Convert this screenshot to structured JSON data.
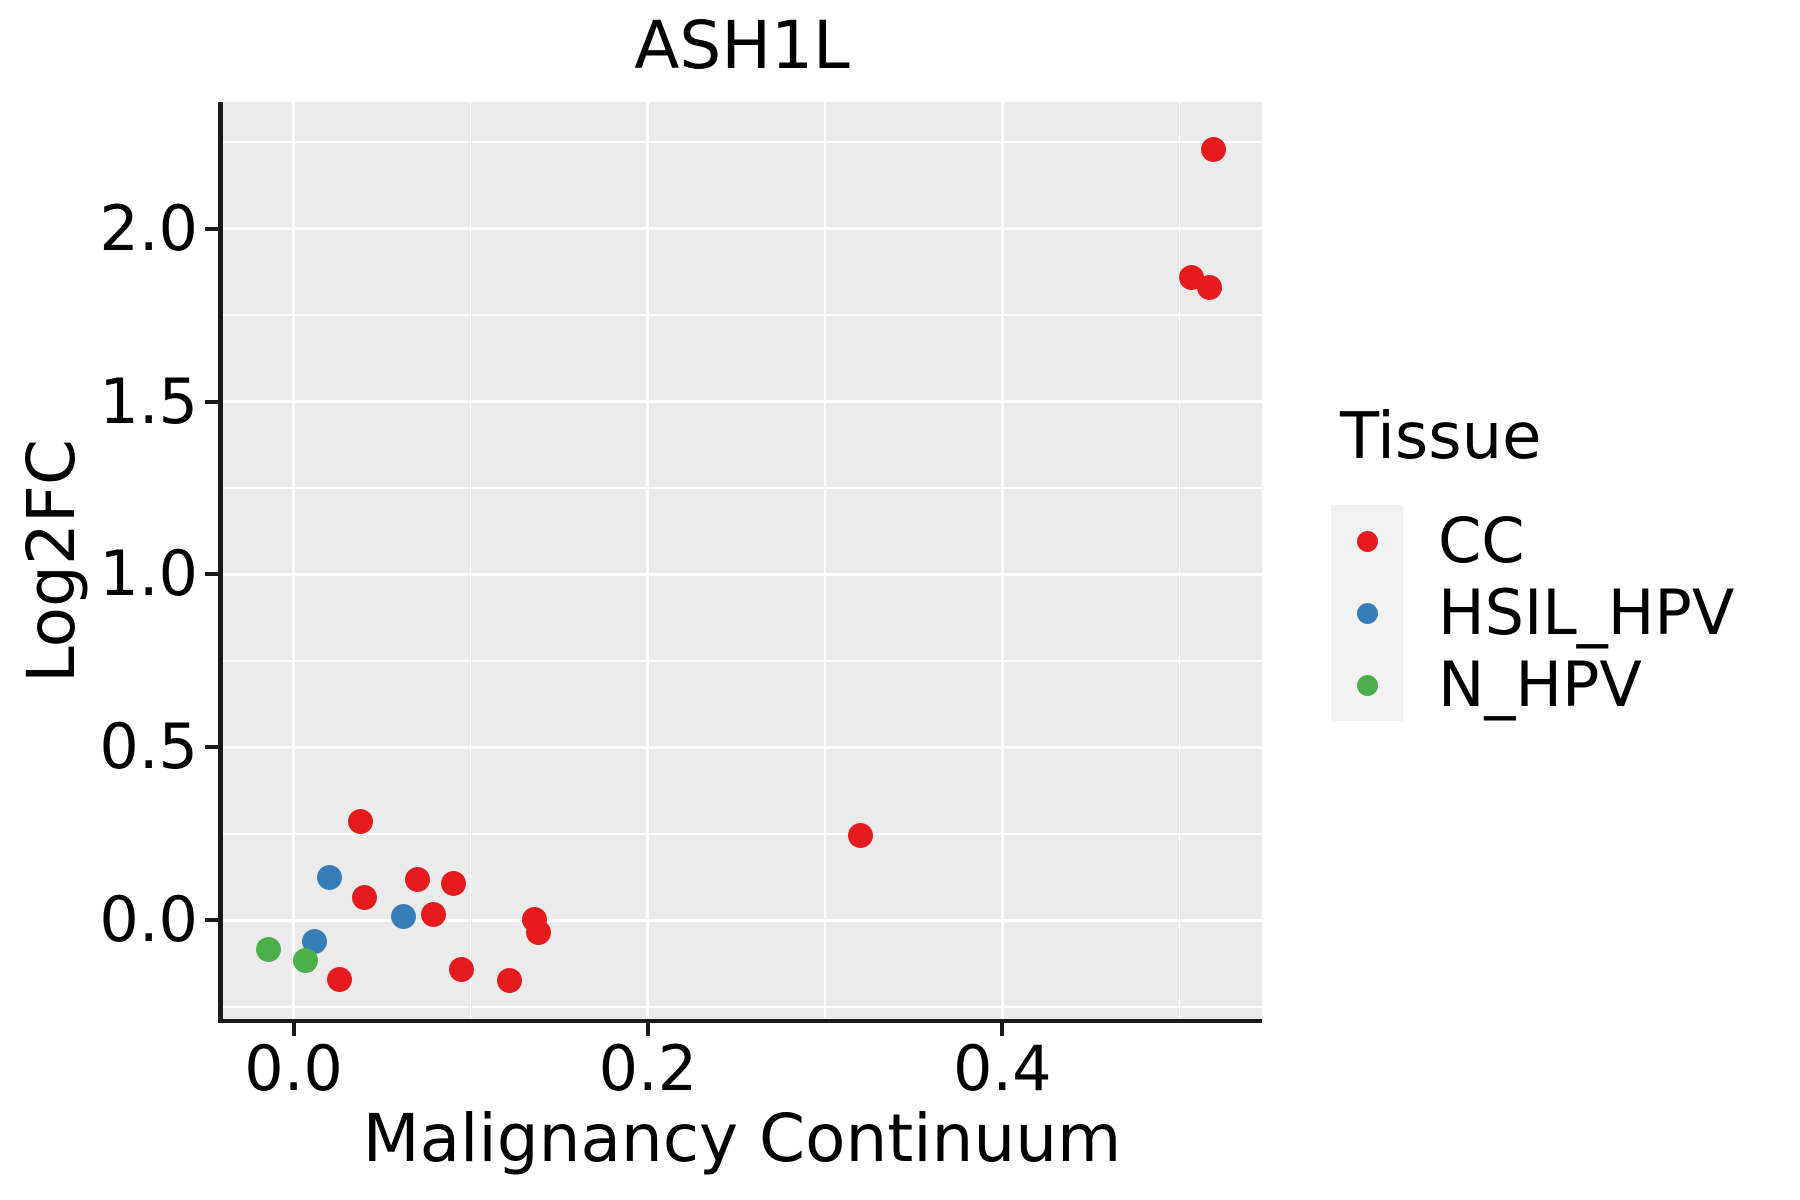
{
  "chart_data": {
    "type": "scatter",
    "title": "ASH1L",
    "xlabel": "Malignancy Continuum",
    "ylabel": "Log2FC",
    "panel_bg": "#EBEBEB",
    "grid_color": "#FFFFFF",
    "xlim": [
      -0.0404,
      0.5466
    ],
    "ylim": [
      -0.288,
      2.366
    ],
    "x_major_ticks": [
      0.0,
      0.2,
      0.4
    ],
    "x_tick_labels": [
      "0.0",
      "0.2",
      "0.4"
    ],
    "x_minor_ticks": [
      0.1,
      0.3,
      0.5
    ],
    "y_major_ticks": [
      0.0,
      0.5,
      1.0,
      1.5,
      2.0
    ],
    "y_tick_labels": [
      "0.0",
      "0.5",
      "1.0",
      "1.5",
      "2.0"
    ],
    "y_minor_ticks": [
      -0.25,
      0.25,
      0.75,
      1.25,
      1.75,
      2.25
    ],
    "legend": {
      "title": "Tissue",
      "position": "right",
      "key_bg": "#F2F2F2"
    },
    "series": [
      {
        "name": "CC",
        "color": "#E41A1C",
        "points": [
          [
            0.519,
            2.23
          ],
          [
            0.507,
            1.86
          ],
          [
            0.517,
            1.829
          ],
          [
            0.32,
            0.246
          ],
          [
            0.038,
            0.287
          ],
          [
            0.04,
            0.067
          ],
          [
            0.07,
            0.118
          ],
          [
            0.09,
            0.106
          ],
          [
            0.079,
            0.017
          ],
          [
            0.136,
            0.002
          ],
          [
            0.138,
            -0.036
          ],
          [
            0.026,
            -0.172
          ],
          [
            0.095,
            -0.141
          ],
          [
            0.122,
            -0.173
          ]
        ]
      },
      {
        "name": "HSIL_HPV",
        "color": "#377EB8",
        "points": [
          [
            0.02,
            0.125
          ],
          [
            0.062,
            0.012
          ],
          [
            0.012,
            -0.06
          ]
        ]
      },
      {
        "name": "N_HPV",
        "color": "#4DAF4A",
        "points": [
          [
            -0.014,
            -0.084
          ],
          [
            0.007,
            -0.117
          ]
        ]
      }
    ]
  }
}
